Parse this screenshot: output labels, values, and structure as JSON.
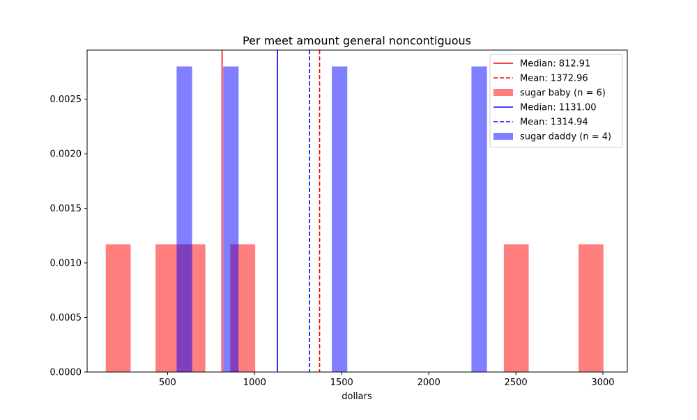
{
  "chart_data": {
    "type": "bar",
    "title": "Per meet amount general noncontiguous",
    "xlabel": "dollars",
    "ylabel": "",
    "xlim": [
      38,
      3140
    ],
    "ylim": [
      0,
      0.00295
    ],
    "x_ticks": [
      500,
      1000,
      1500,
      2000,
      2500,
      3000
    ],
    "y_ticks": [
      0.0,
      0.0005,
      0.001,
      0.0015,
      0.002,
      0.0025
    ],
    "y_tick_labels": [
      "0.0000",
      "0.0005",
      "0.0010",
      "0.0015",
      "0.0020",
      "0.0025"
    ],
    "grid": false,
    "legend_position": "top-right",
    "series": [
      {
        "name": "sugar baby (n = 6)",
        "color": "#ff0000",
        "alpha": 0.5,
        "bins": [
          {
            "x0": 145,
            "x1": 288,
            "value": 0.00117
          },
          {
            "x0": 431,
            "x1": 574,
            "value": 0.00117
          },
          {
            "x0": 574,
            "x1": 717,
            "value": 0.00117
          },
          {
            "x0": 860,
            "x1": 1003,
            "value": 0.00117
          },
          {
            "x0": 2431,
            "x1": 2574,
            "value": 0.00117
          },
          {
            "x0": 2860,
            "x1": 3003,
            "value": 0.00117
          }
        ],
        "median": 812.91,
        "mean": 1372.96,
        "median_label": "Median: 812.91",
        "mean_label": "Mean: 1372.96"
      },
      {
        "name": "sugar daddy (n = 4)",
        "color": "#0000ff",
        "alpha": 0.5,
        "bins": [
          {
            "x0": 552,
            "x1": 641,
            "value": 0.0028
          },
          {
            "x0": 819,
            "x1": 908,
            "value": 0.0028
          },
          {
            "x0": 1443,
            "x1": 1532,
            "value": 0.0028
          },
          {
            "x0": 2245,
            "x1": 2334,
            "value": 0.0028
          }
        ],
        "median": 1131.0,
        "mean": 1314.94,
        "median_label": "Median: 1131.00",
        "mean_label": "Mean: 1314.94"
      }
    ]
  }
}
